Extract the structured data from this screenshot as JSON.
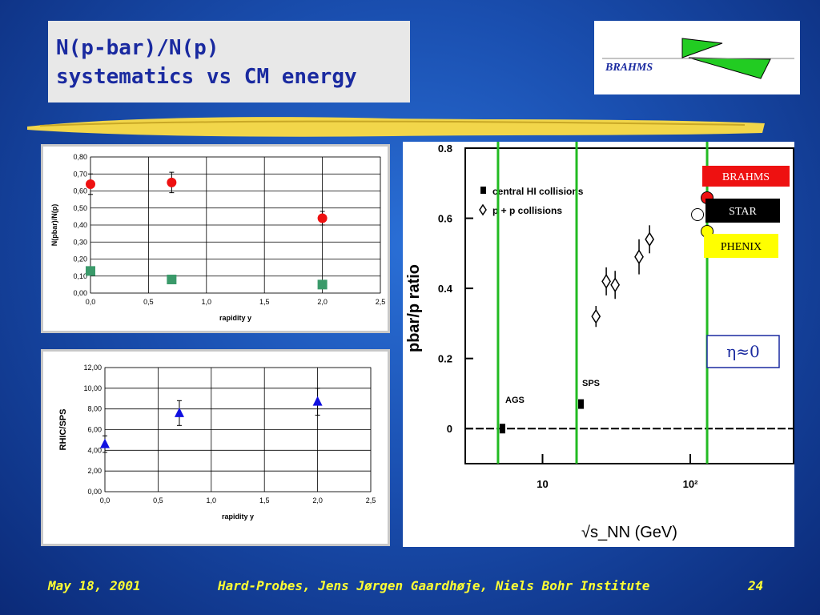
{
  "slide": {
    "title_line1": "N(p-bar)/N(p)",
    "title_line2": "systematics vs CM energy",
    "logo_text": "BRAHMS",
    "footer_date": "May 18, 2001",
    "footer_center": "Hard-Probes, Jens Jørgen Gaardhøje, Niels Bohr Institute",
    "footer_page": "24"
  },
  "colors": {
    "title_text": "#1a2aa0",
    "footer_text": "#ffff33",
    "red_series": "#ee1111",
    "green_series": "#3a9a6a",
    "blue_series": "#1010e0",
    "vline": "#22bb22"
  },
  "chart_data": [
    {
      "type": "scatter",
      "xlabel": "rapidity y",
      "ylabel": "N(pbar)/N(p)",
      "xlim": [
        0,
        2.5
      ],
      "ylim": [
        0,
        0.8
      ],
      "xticks": [
        "0,0",
        "0,5",
        "1,0",
        "1,5",
        "2,0",
        "2,5"
      ],
      "yticks": [
        "0,00",
        "0,10",
        "0,20",
        "0,30",
        "0,40",
        "0,50",
        "0,60",
        "0,70",
        "0,80"
      ],
      "grid": true,
      "series": [
        {
          "marker": "circle",
          "color": "#ee1111",
          "points": [
            {
              "x": 0.0,
              "y": 0.64,
              "err": 0.06
            },
            {
              "x": 0.7,
              "y": 0.65,
              "err": 0.06
            },
            {
              "x": 2.0,
              "y": 0.44,
              "err": 0.04
            }
          ]
        },
        {
          "marker": "square",
          "color": "#3a9a6a",
          "points": [
            {
              "x": 0.0,
              "y": 0.13
            },
            {
              "x": 0.7,
              "y": 0.08
            },
            {
              "x": 2.0,
              "y": 0.05
            }
          ]
        }
      ]
    },
    {
      "type": "scatter",
      "xlabel": "rapidity y",
      "ylabel": "RHIC/SPS",
      "xlim": [
        0,
        2.5
      ],
      "ylim": [
        0,
        12
      ],
      "xticks": [
        "0,0",
        "0,5",
        "1,0",
        "1,5",
        "2,0",
        "2,5"
      ],
      "yticks": [
        "0,00",
        "2,00",
        "4,00",
        "6,00",
        "8,00",
        "10,00",
        "12,00"
      ],
      "grid": true,
      "series": [
        {
          "marker": "triangle",
          "color": "#1010e0",
          "points": [
            {
              "x": 0.0,
              "y": 4.6,
              "err": 0.8
            },
            {
              "x": 0.7,
              "y": 7.6,
              "err": 1.2
            },
            {
              "x": 2.0,
              "y": 8.7,
              "err": 1.3
            }
          ]
        }
      ]
    },
    {
      "type": "scatter",
      "xlabel": "√s_NN (GeV)",
      "ylabel": "pbar/p ratio",
      "xscale": "log",
      "ylim": [
        -0.1,
        0.8
      ],
      "yticks": [
        "0",
        "0.2",
        "0.4",
        "0.6",
        "0.8"
      ],
      "xticks": [
        "10",
        "10²"
      ],
      "legend": [
        "central HI collisions",
        "p + p collisions"
      ],
      "annotations": [
        "AGS",
        "SPS",
        "η≈0"
      ],
      "labels": [
        {
          "text": "BRAHMS",
          "bg": "#ee1111",
          "fg": "#ffffff"
        },
        {
          "text": "STAR",
          "bg": "#000000",
          "fg": "#ffffff"
        },
        {
          "text": "PHENIX",
          "bg": "#ffff00",
          "fg": "#000000"
        }
      ],
      "hi_points": [
        {
          "x": 5,
          "y": 0.0
        },
        {
          "x": 17,
          "y": 0.07
        },
        {
          "x": 130,
          "y": 0.62
        }
      ],
      "pp_points": [
        {
          "x": 23,
          "y": 0.32,
          "err": 0.03
        },
        {
          "x": 27,
          "y": 0.42,
          "err": 0.04
        },
        {
          "x": 31,
          "y": 0.41,
          "err": 0.04
        },
        {
          "x": 45,
          "y": 0.49,
          "err": 0.05
        },
        {
          "x": 53,
          "y": 0.54,
          "err": 0.04
        }
      ],
      "rhic_markers": [
        {
          "color": "#ee1111",
          "y": 0.65
        },
        {
          "color": "#ffffff",
          "y": 0.62
        },
        {
          "color": "#ffff00",
          "y": 0.56
        }
      ],
      "vlines_x": [
        5,
        17,
        130
      ]
    }
  ]
}
